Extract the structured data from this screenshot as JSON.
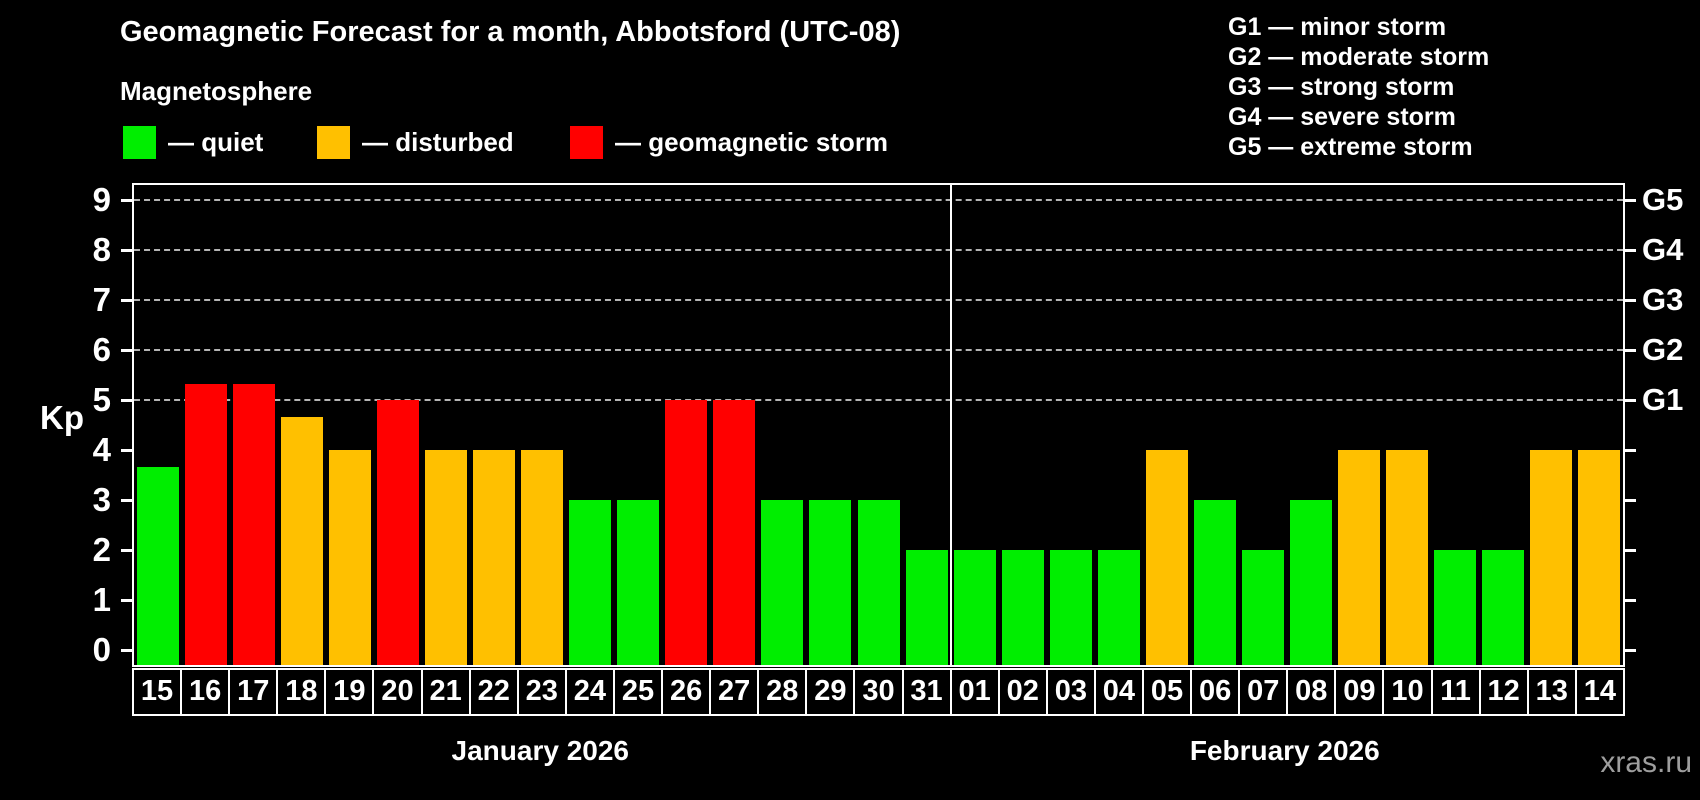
{
  "header": {
    "title": "Geomagnetic Forecast for a month, Abbotsford (UTC-08)",
    "subtitle": "Magnetosphere"
  },
  "legend": [
    {
      "status": "quiet",
      "label": "— quiet",
      "color": "#00ee00"
    },
    {
      "status": "disturbed",
      "label": "— disturbed",
      "color": "#ffc000"
    },
    {
      "status": "storm",
      "label": "— geomagnetic storm",
      "color": "#ff0000"
    }
  ],
  "g_legend": [
    "G1 — minor storm",
    "G2 — moderate storm",
    "G3 — strong storm",
    "G4 — severe storm",
    "G5 — extreme storm"
  ],
  "axes": {
    "kp_label": "Kp",
    "left_ticks": [
      0,
      1,
      2,
      3,
      4,
      5,
      6,
      7,
      8,
      9
    ],
    "right_labels": [
      {
        "text": "G1",
        "kp": 5
      },
      {
        "text": "G2",
        "kp": 6
      },
      {
        "text": "G3",
        "kp": 7
      },
      {
        "text": "G4",
        "kp": 8
      },
      {
        "text": "G5",
        "kp": 9
      }
    ]
  },
  "watermark": "xras.ru",
  "chart_data": {
    "type": "bar",
    "title": "Geomagnetic Forecast for a month, Abbotsford (UTC-08)",
    "ylabel": "Kp",
    "ylim": [
      0,
      9
    ],
    "grid": "dashed horizontal at Kp 5-9 (storm levels G1-G5)",
    "gridlines_at": [
      5,
      6,
      7,
      8,
      9
    ],
    "status_colors": {
      "quiet": "#00ee00",
      "disturbed": "#ffc000",
      "storm": "#ff0000"
    },
    "series": [
      {
        "month": "January 2026",
        "points": [
          {
            "day": "15",
            "kp": 3.67,
            "status": "quiet"
          },
          {
            "day": "16",
            "kp": 5.33,
            "status": "storm"
          },
          {
            "day": "17",
            "kp": 5.33,
            "status": "storm"
          },
          {
            "day": "18",
            "kp": 4.67,
            "status": "disturbed"
          },
          {
            "day": "19",
            "kp": 4,
            "status": "disturbed"
          },
          {
            "day": "20",
            "kp": 5,
            "status": "storm"
          },
          {
            "day": "21",
            "kp": 4,
            "status": "disturbed"
          },
          {
            "day": "22",
            "kp": 4,
            "status": "disturbed"
          },
          {
            "day": "23",
            "kp": 4,
            "status": "disturbed"
          },
          {
            "day": "24",
            "kp": 3,
            "status": "quiet"
          },
          {
            "day": "25",
            "kp": 3,
            "status": "quiet"
          },
          {
            "day": "26",
            "kp": 5,
            "status": "storm"
          },
          {
            "day": "27",
            "kp": 5,
            "status": "storm"
          },
          {
            "day": "28",
            "kp": 3,
            "status": "quiet"
          },
          {
            "day": "29",
            "kp": 3,
            "status": "quiet"
          },
          {
            "day": "30",
            "kp": 3,
            "status": "quiet"
          },
          {
            "day": "31",
            "kp": 2,
            "status": "quiet"
          }
        ]
      },
      {
        "month": "February 2026",
        "points": [
          {
            "day": "01",
            "kp": 2,
            "status": "quiet"
          },
          {
            "day": "02",
            "kp": 2,
            "status": "quiet"
          },
          {
            "day": "03",
            "kp": 2,
            "status": "quiet"
          },
          {
            "day": "04",
            "kp": 2,
            "status": "quiet"
          },
          {
            "day": "05",
            "kp": 4,
            "status": "disturbed"
          },
          {
            "day": "06",
            "kp": 3,
            "status": "quiet"
          },
          {
            "day": "07",
            "kp": 2,
            "status": "quiet"
          },
          {
            "day": "08",
            "kp": 3,
            "status": "quiet"
          },
          {
            "day": "09",
            "kp": 4,
            "status": "disturbed"
          },
          {
            "day": "10",
            "kp": 4,
            "status": "disturbed"
          },
          {
            "day": "11",
            "kp": 2,
            "status": "quiet"
          },
          {
            "day": "12",
            "kp": 2,
            "status": "quiet"
          },
          {
            "day": "13",
            "kp": 4,
            "status": "disturbed"
          },
          {
            "day": "14",
            "kp": 4,
            "status": "disturbed"
          }
        ]
      }
    ]
  }
}
